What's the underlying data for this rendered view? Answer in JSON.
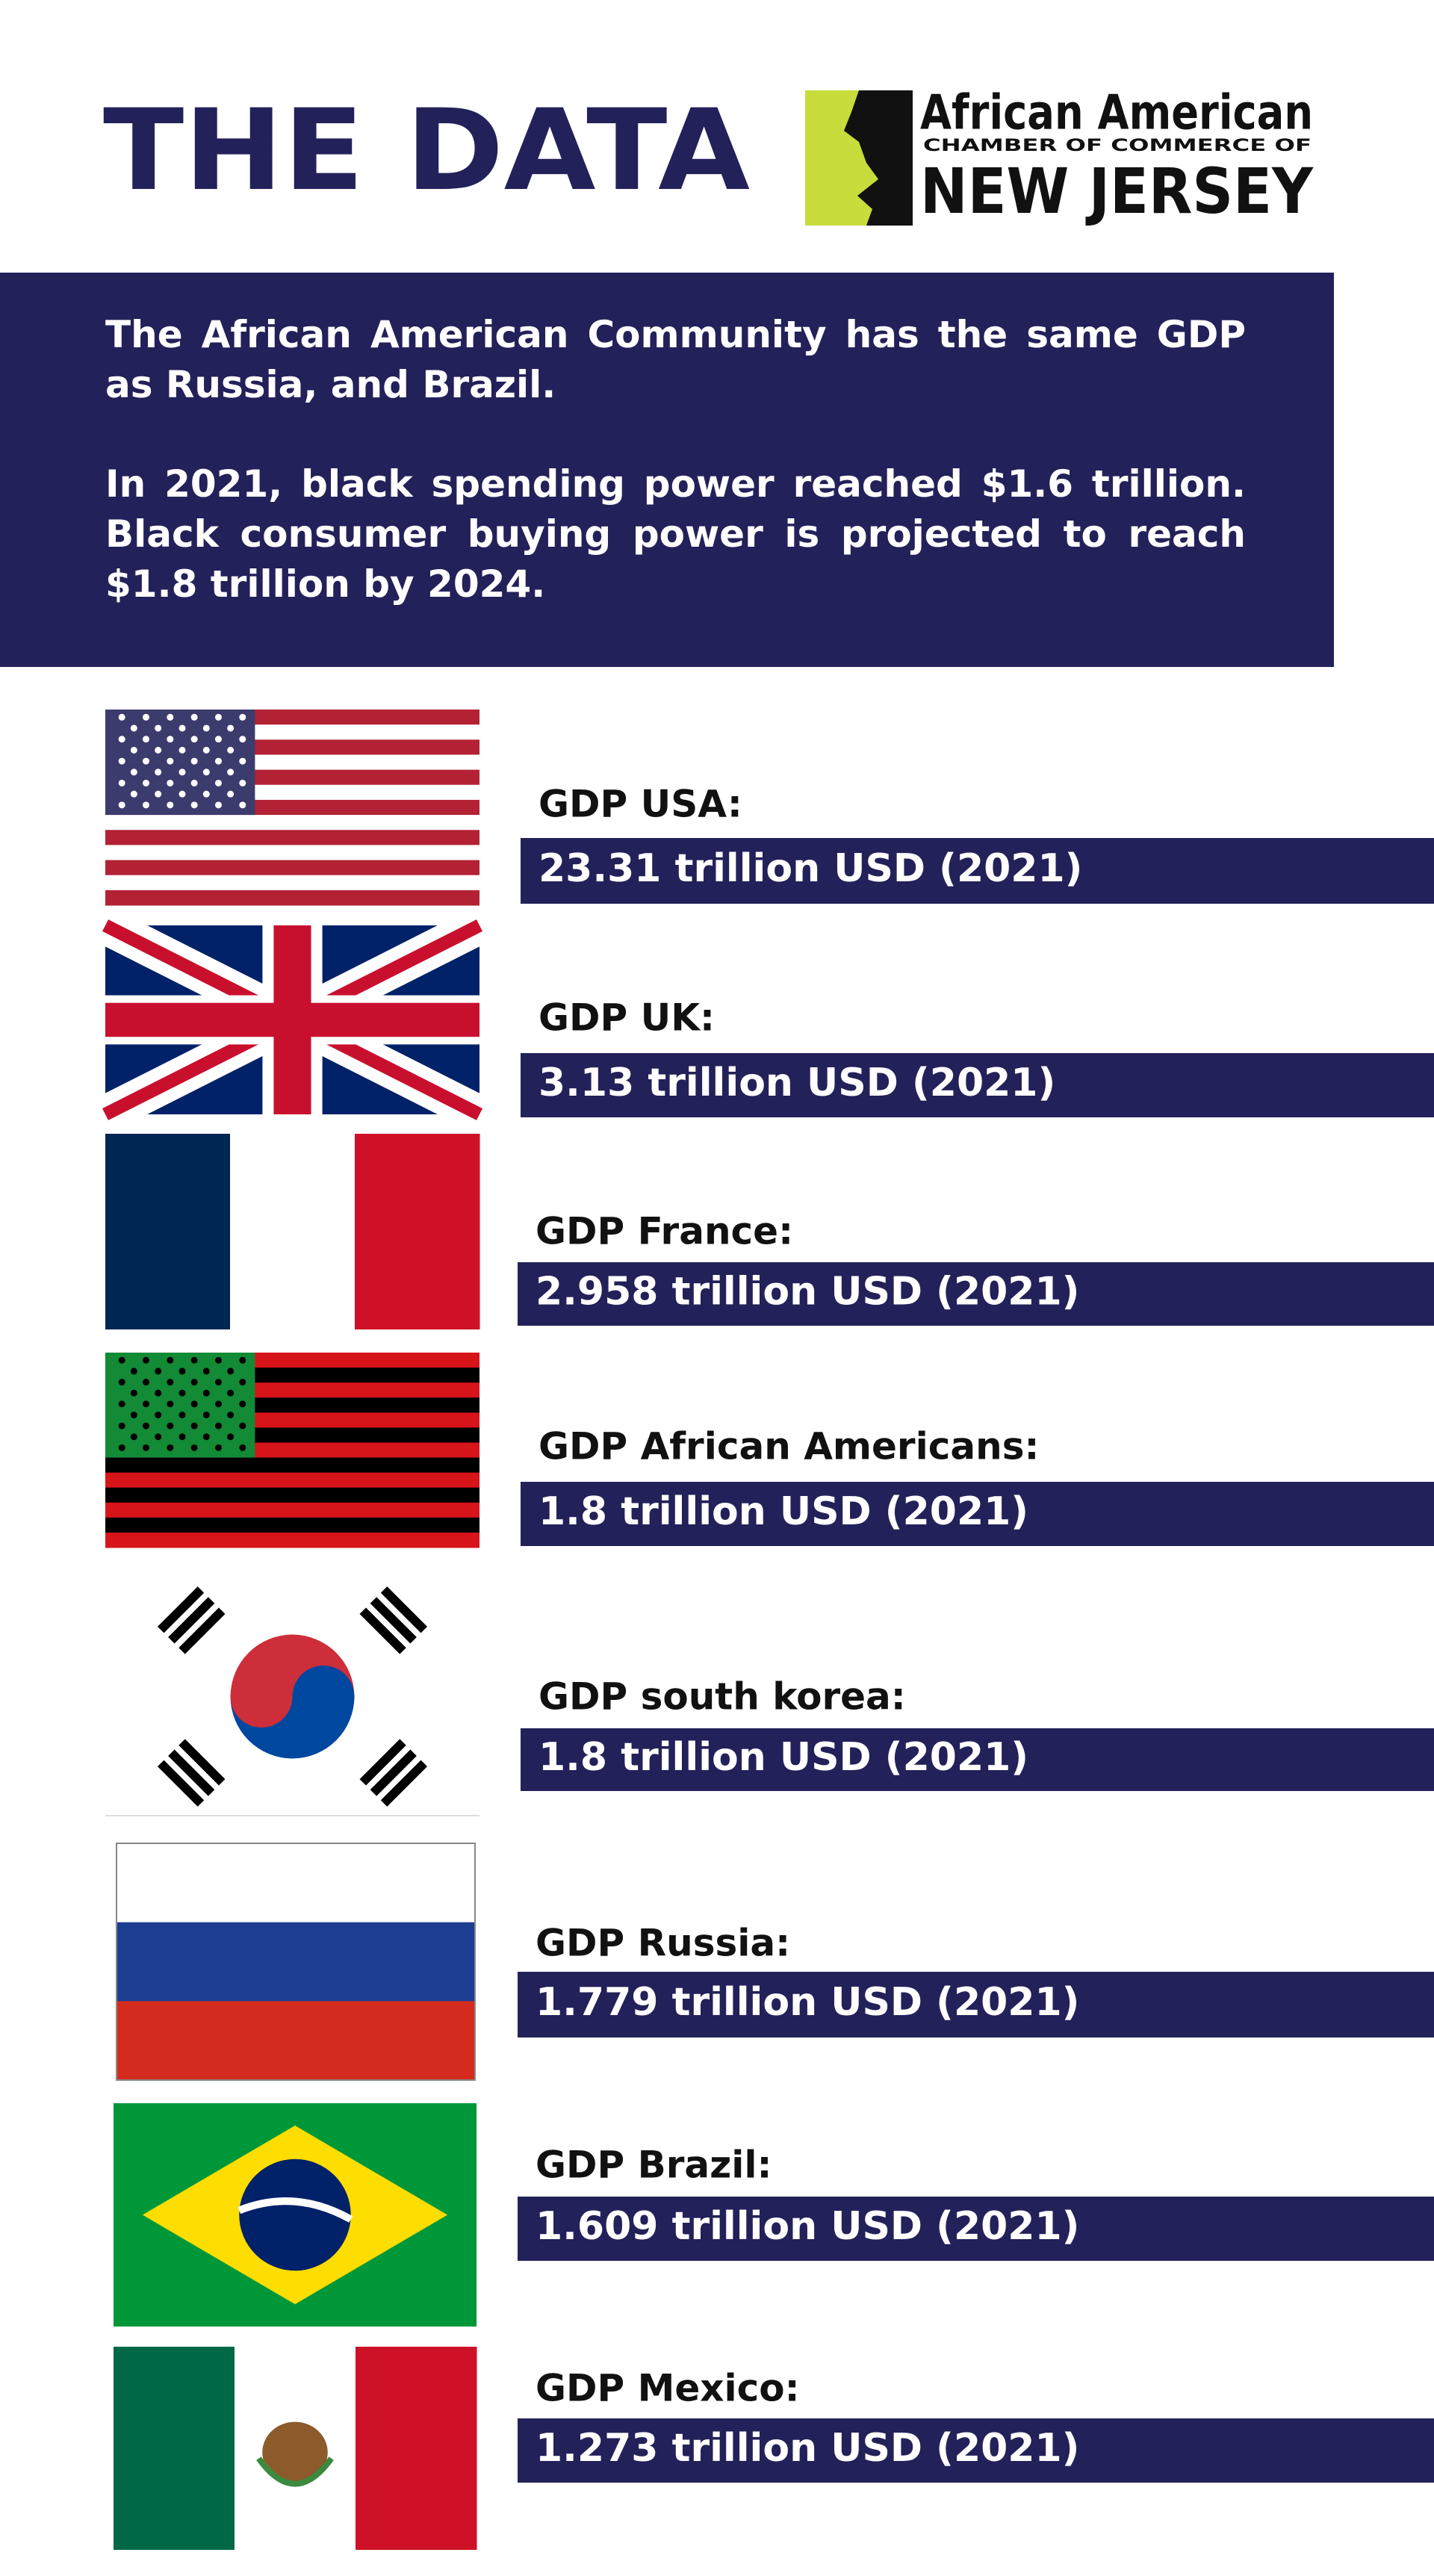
{
  "header": {
    "title": "THE DATA",
    "logo": {
      "line1": "African American",
      "line2": "CHAMBER OF COMMERCE OF",
      "line3": "NEW JERSEY"
    }
  },
  "intro": {
    "paragraphs": [
      "The African American Community has the same GDP as Russia, and Brazil.",
      "In 2021, black spending power reached $1.6 trillion. Black consumer buying power is projected to reach $1.8 trillion by 2024."
    ]
  },
  "items": [
    {
      "label": "GDP USA:",
      "value": "23.31 trillion USD (2021)"
    },
    {
      "label": "GDP UK:",
      "value": "3.13 trillion USD (2021)"
    },
    {
      "label": "GDP France:",
      "value": "2.958 trillion USD (2021)"
    },
    {
      "label": "GDP African Americans:",
      "value": "1.8 trillion USD (2021)"
    },
    {
      "label": "GDP south korea:",
      "value": "1.8 trillion USD (2021)"
    },
    {
      "label": "GDP Russia:",
      "value": "1.779 trillion USD (2021)"
    },
    {
      "label": "GDP Brazil:",
      "value": "1.609 trillion USD (2021)"
    },
    {
      "label": "GDP Mexico:",
      "value": "1.273 trillion USD (2021)"
    }
  ]
}
